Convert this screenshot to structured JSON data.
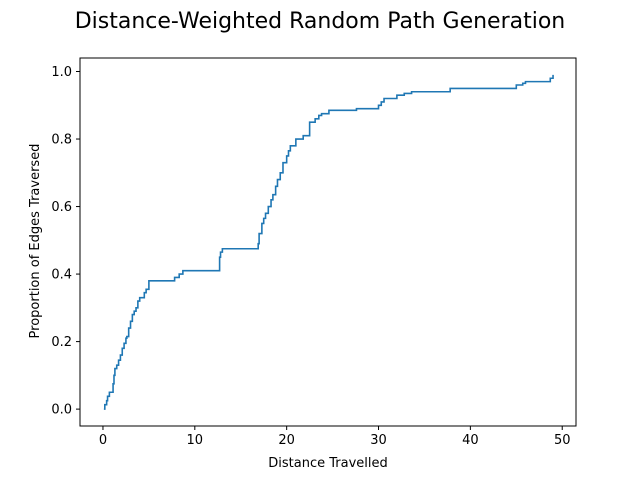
{
  "chart_data": {
    "type": "line",
    "title": "Distance-Weighted Random Path Generation",
    "xlabel": "Distance Travelled",
    "ylabel": "Proportion of Edges Traversed",
    "xlim": [
      -2.5,
      51.5
    ],
    "ylim": [
      -0.05,
      1.04
    ],
    "xticks": [
      0,
      10,
      20,
      30,
      40,
      50
    ],
    "yticks": [
      0.0,
      0.2,
      0.4,
      0.6,
      0.8,
      1.0
    ],
    "xtick_labels": [
      "0",
      "10",
      "20",
      "30",
      "40",
      "50"
    ],
    "ytick_labels": [
      "0.0",
      "0.2",
      "0.4",
      "0.6",
      "0.8",
      "1.0"
    ],
    "grid": false,
    "series": [
      {
        "color": "#1f77b4",
        "step": true,
        "x": [
          0.1,
          0.2,
          0.4,
          0.5,
          0.7,
          0.9,
          1.1,
          1.2,
          1.3,
          1.5,
          1.7,
          1.9,
          2.1,
          2.3,
          2.5,
          2.6,
          2.8,
          3.0,
          3.2,
          3.4,
          3.6,
          3.8,
          4.0,
          4.2,
          4.5,
          4.7,
          5.0,
          5.5,
          5.9,
          6.2,
          7.8,
          8.3,
          8.7,
          9.0,
          12.7,
          12.8,
          13.0,
          13.1,
          16.9,
          17.0,
          17.3,
          17.5,
          17.7,
          18.0,
          18.3,
          18.5,
          18.8,
          19.0,
          19.3,
          19.6,
          20.0,
          20.2,
          20.4,
          20.6,
          21.0,
          21.4,
          21.8,
          22.5,
          23.1,
          23.5,
          23.8,
          24.2,
          24.6,
          25.4,
          27.6,
          30.0,
          30.3,
          30.6,
          32.0,
          32.8,
          33.6,
          37.8,
          45.0,
          45.7,
          46.0,
          48.7,
          49.0
        ],
        "y": [
          0.0,
          0.013,
          0.025,
          0.038,
          0.05,
          0.05,
          0.075,
          0.1,
          0.12,
          0.13,
          0.145,
          0.16,
          0.18,
          0.195,
          0.21,
          0.215,
          0.24,
          0.26,
          0.28,
          0.29,
          0.3,
          0.32,
          0.33,
          0.33,
          0.345,
          0.355,
          0.38,
          0.38,
          0.38,
          0.38,
          0.39,
          0.4,
          0.41,
          0.41,
          0.45,
          0.465,
          0.475,
          0.475,
          0.49,
          0.52,
          0.55,
          0.565,
          0.58,
          0.6,
          0.62,
          0.635,
          0.66,
          0.68,
          0.7,
          0.73,
          0.75,
          0.765,
          0.78,
          0.78,
          0.8,
          0.8,
          0.81,
          0.85,
          0.86,
          0.87,
          0.875,
          0.875,
          0.885,
          0.885,
          0.89,
          0.9,
          0.91,
          0.92,
          0.93,
          0.935,
          0.94,
          0.95,
          0.96,
          0.965,
          0.97,
          0.98,
          0.99
        ]
      }
    ]
  }
}
